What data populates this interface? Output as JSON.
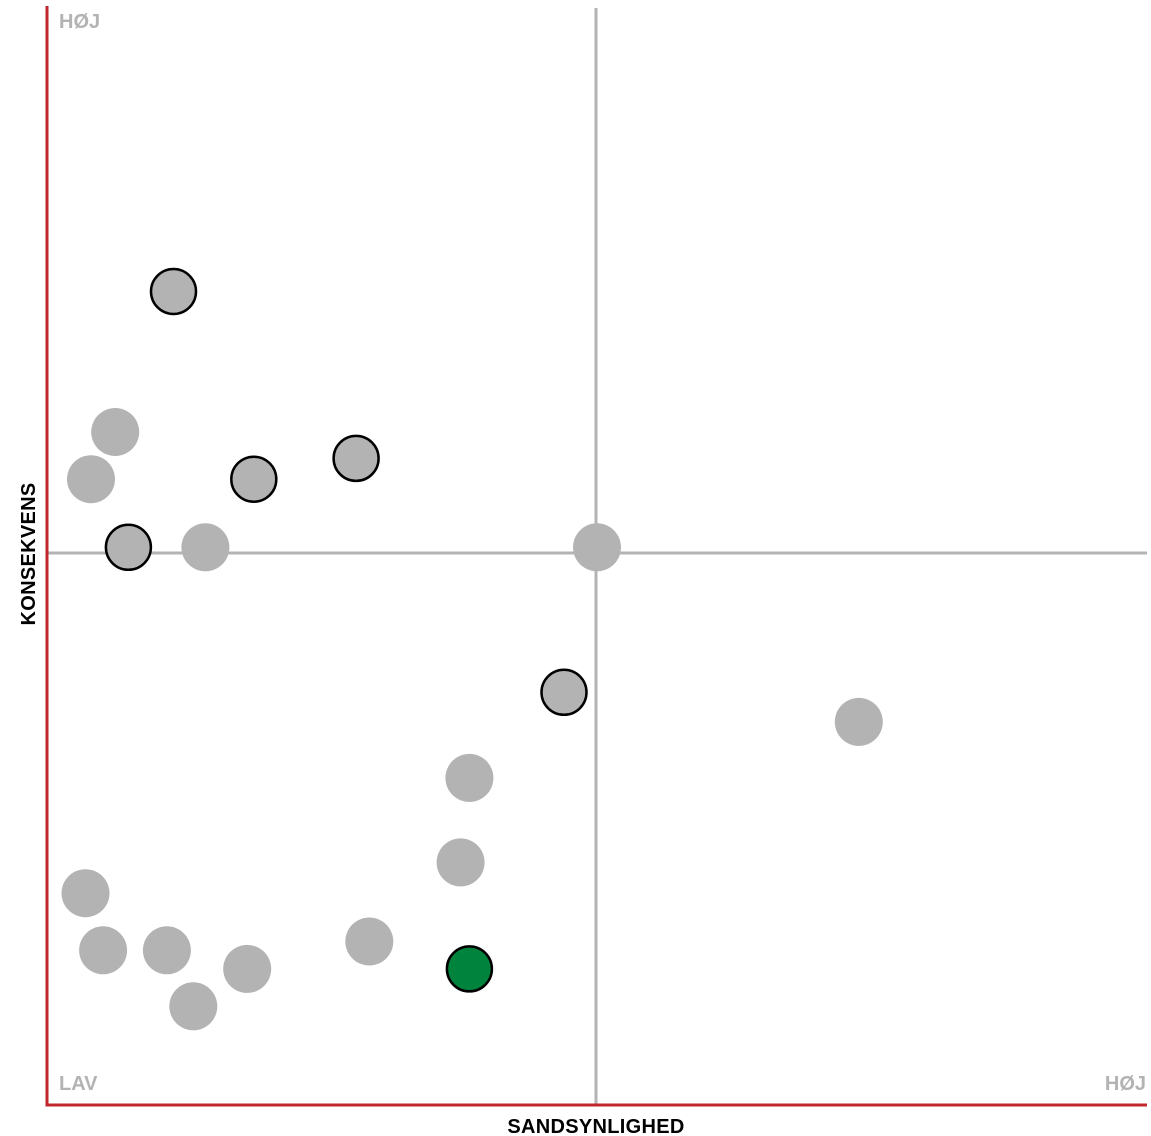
{
  "chart_data": {
    "type": "scatter",
    "title": "",
    "xlabel": "SANDSYNLIGHED",
    "ylabel": "KONSEKVENS",
    "xlim": [
      0,
      1
    ],
    "ylim": [
      0,
      1
    ],
    "grid": false,
    "corner_labels": {
      "y_high": "HØJ",
      "x_low": "LAV",
      "x_high": "HØJ"
    },
    "colors": {
      "axis": "#c1272d",
      "divider": "#b3b3b3",
      "point_fill": "#b3b3b3",
      "point_outline": "#000000",
      "highlight_fill": "#00843d"
    },
    "series": [
      {
        "points": [
          {
            "x": 0.115,
            "y": 0.74,
            "outlined": true,
            "highlight": false
          },
          {
            "x": 0.062,
            "y": 0.612,
            "outlined": false,
            "highlight": false
          },
          {
            "x": 0.04,
            "y": 0.569,
            "outlined": false,
            "highlight": false
          },
          {
            "x": 0.188,
            "y": 0.569,
            "outlined": true,
            "highlight": false
          },
          {
            "x": 0.281,
            "y": 0.588,
            "outlined": true,
            "highlight": false
          },
          {
            "x": 0.074,
            "y": 0.507,
            "outlined": true,
            "highlight": false
          },
          {
            "x": 0.144,
            "y": 0.507,
            "outlined": false,
            "highlight": false
          },
          {
            "x": 0.5,
            "y": 0.507,
            "outlined": false,
            "highlight": false
          },
          {
            "x": 0.47,
            "y": 0.375,
            "outlined": true,
            "highlight": false
          },
          {
            "x": 0.738,
            "y": 0.348,
            "outlined": false,
            "highlight": false
          },
          {
            "x": 0.384,
            "y": 0.297,
            "outlined": false,
            "highlight": false
          },
          {
            "x": 0.376,
            "y": 0.22,
            "outlined": false,
            "highlight": false
          },
          {
            "x": 0.035,
            "y": 0.192,
            "outlined": false,
            "highlight": false
          },
          {
            "x": 0.051,
            "y": 0.14,
            "outlined": false,
            "highlight": false
          },
          {
            "x": 0.109,
            "y": 0.14,
            "outlined": false,
            "highlight": false
          },
          {
            "x": 0.182,
            "y": 0.123,
            "outlined": false,
            "highlight": false
          },
          {
            "x": 0.133,
            "y": 0.089,
            "outlined": false,
            "highlight": false
          },
          {
            "x": 0.293,
            "y": 0.148,
            "outlined": false,
            "highlight": false
          },
          {
            "x": 0.384,
            "y": 0.123,
            "outlined": true,
            "highlight": true
          }
        ]
      }
    ]
  }
}
